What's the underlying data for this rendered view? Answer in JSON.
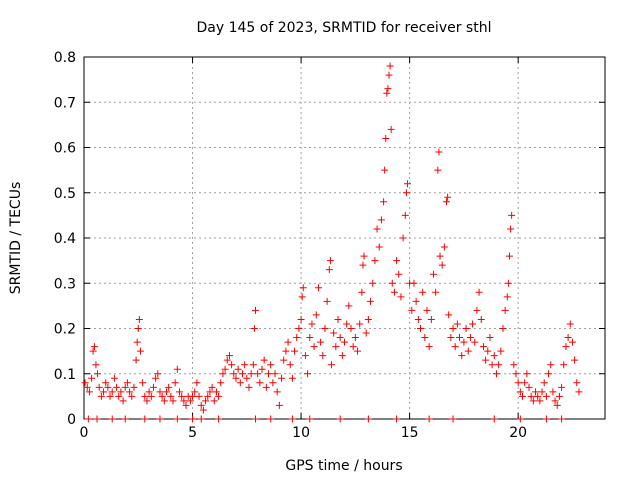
{
  "chart_data": {
    "type": "scatter",
    "title": "Day 145 of 2023, SRMTID for receiver sthl",
    "xlabel": "GPS time / hours",
    "ylabel": "SRMTID / TECUs",
    "xlim": [
      0,
      24
    ],
    "ylim": [
      0,
      0.8
    ],
    "xticks": [
      0,
      5,
      10,
      15,
      20
    ],
    "yticks": [
      0,
      0.1,
      0.2,
      0.3,
      0.4,
      0.5,
      0.6,
      0.7,
      0.8
    ],
    "grid": true,
    "marker": "+",
    "color": "#ff0000",
    "series": [
      {
        "name": "SRMTID",
        "points": [
          [
            0.05,
            0.08
          ],
          [
            0.15,
            0.07
          ],
          [
            0.25,
            0.06
          ],
          [
            0.35,
            0.09
          ],
          [
            0.42,
            0.15
          ],
          [
            0.48,
            0.16
          ],
          [
            0.55,
            0.12
          ],
          [
            0.62,
            0.1
          ],
          [
            0.7,
            0.07
          ],
          [
            0.8,
            0.05
          ],
          [
            0.9,
            0.06
          ],
          [
            1.0,
            0.08
          ],
          [
            1.1,
            0.07
          ],
          [
            1.2,
            0.05
          ],
          [
            1.3,
            0.06
          ],
          [
            1.4,
            0.09
          ],
          [
            1.5,
            0.07
          ],
          [
            1.6,
            0.05
          ],
          [
            1.7,
            0.06
          ],
          [
            1.8,
            0.04
          ],
          [
            1.9,
            0.07
          ],
          [
            2.0,
            0.08
          ],
          [
            2.1,
            0.06
          ],
          [
            2.2,
            0.05
          ],
          [
            2.3,
            0.07
          ],
          [
            2.4,
            0.13
          ],
          [
            2.45,
            0.17
          ],
          [
            2.5,
            0.2
          ],
          [
            2.55,
            0.22
          ],
          [
            2.6,
            0.15
          ],
          [
            2.7,
            0.08
          ],
          [
            2.8,
            0.05
          ],
          [
            2.9,
            0.04
          ],
          [
            3.0,
            0.06
          ],
          [
            3.1,
            0.05
          ],
          [
            3.2,
            0.07
          ],
          [
            3.3,
            0.09
          ],
          [
            3.4,
            0.1
          ],
          [
            3.5,
            0.06
          ],
          [
            3.6,
            0.05
          ],
          [
            3.7,
            0.04
          ],
          [
            3.8,
            0.06
          ],
          [
            3.9,
            0.07
          ],
          [
            4.0,
            0.05
          ],
          [
            4.1,
            0.04
          ],
          [
            4.2,
            0.08
          ],
          [
            4.3,
            0.11
          ],
          [
            4.4,
            0.06
          ],
          [
            4.5,
            0.05
          ],
          [
            4.6,
            0.04
          ],
          [
            4.7,
            0.03
          ],
          [
            4.8,
            0.05
          ],
          [
            4.9,
            0.04
          ],
          [
            5.0,
            0.05
          ],
          [
            5.1,
            0.06
          ],
          [
            5.2,
            0.08
          ],
          [
            5.3,
            0.05
          ],
          [
            5.4,
            0.03
          ],
          [
            5.5,
            0.02
          ],
          [
            5.6,
            0.04
          ],
          [
            5.7,
            0.05
          ],
          [
            5.8,
            0.06
          ],
          [
            5.9,
            0.07
          ],
          [
            6.0,
            0.04
          ],
          [
            6.1,
            0.06
          ],
          [
            6.2,
            0.05
          ],
          [
            6.3,
            0.08
          ],
          [
            6.4,
            0.1
          ],
          [
            6.5,
            0.11
          ],
          [
            6.6,
            0.13
          ],
          [
            6.7,
            0.14
          ],
          [
            6.8,
            0.12
          ],
          [
            6.9,
            0.1
          ],
          [
            7.0,
            0.09
          ],
          [
            7.1,
            0.11
          ],
          [
            7.2,
            0.08
          ],
          [
            7.3,
            0.1
          ],
          [
            7.4,
            0.12
          ],
          [
            7.5,
            0.09
          ],
          [
            7.6,
            0.07
          ],
          [
            7.7,
            0.1
          ],
          [
            7.8,
            0.12
          ],
          [
            7.85,
            0.2
          ],
          [
            7.9,
            0.24
          ],
          [
            8.0,
            0.1
          ],
          [
            8.1,
            0.08
          ],
          [
            8.2,
            0.11
          ],
          [
            8.3,
            0.13
          ],
          [
            8.4,
            0.07
          ],
          [
            8.5,
            0.1
          ],
          [
            8.6,
            0.12
          ],
          [
            8.7,
            0.08
          ],
          [
            8.8,
            0.1
          ],
          [
            8.9,
            0.06
          ],
          [
            9.0,
            0.03
          ],
          [
            9.1,
            0.09
          ],
          [
            9.2,
            0.13
          ],
          [
            9.3,
            0.15
          ],
          [
            9.4,
            0.17
          ],
          [
            9.5,
            0.12
          ],
          [
            9.6,
            0.09
          ],
          [
            9.7,
            0.15
          ],
          [
            9.8,
            0.18
          ],
          [
            9.9,
            0.2
          ],
          [
            10.0,
            0.22
          ],
          [
            10.05,
            0.27
          ],
          [
            10.1,
            0.29
          ],
          [
            10.2,
            0.14
          ],
          [
            10.3,
            0.1
          ],
          [
            10.4,
            0.18
          ],
          [
            10.5,
            0.21
          ],
          [
            10.6,
            0.16
          ],
          [
            10.7,
            0.23
          ],
          [
            10.8,
            0.29
          ],
          [
            10.9,
            0.17
          ],
          [
            11.0,
            0.14
          ],
          [
            11.1,
            0.2
          ],
          [
            11.2,
            0.26
          ],
          [
            11.3,
            0.33
          ],
          [
            11.35,
            0.35
          ],
          [
            11.4,
            0.12
          ],
          [
            11.5,
            0.19
          ],
          [
            11.6,
            0.16
          ],
          [
            11.7,
            0.22
          ],
          [
            11.8,
            0.18
          ],
          [
            11.9,
            0.14
          ],
          [
            12.0,
            0.17
          ],
          [
            12.1,
            0.21
          ],
          [
            12.2,
            0.25
          ],
          [
            12.3,
            0.2
          ],
          [
            12.4,
            0.16
          ],
          [
            12.5,
            0.18
          ],
          [
            12.6,
            0.15
          ],
          [
            12.7,
            0.21
          ],
          [
            12.8,
            0.28
          ],
          [
            12.85,
            0.34
          ],
          [
            12.9,
            0.36
          ],
          [
            13.0,
            0.19
          ],
          [
            13.1,
            0.22
          ],
          [
            13.2,
            0.26
          ],
          [
            13.3,
            0.3
          ],
          [
            13.4,
            0.35
          ],
          [
            13.5,
            0.42
          ],
          [
            13.6,
            0.38
          ],
          [
            13.7,
            0.44
          ],
          [
            13.8,
            0.48
          ],
          [
            13.85,
            0.55
          ],
          [
            13.9,
            0.62
          ],
          [
            13.95,
            0.72
          ],
          [
            14.0,
            0.73
          ],
          [
            14.05,
            0.76
          ],
          [
            14.1,
            0.78
          ],
          [
            14.15,
            0.64
          ],
          [
            14.2,
            0.3
          ],
          [
            14.3,
            0.28
          ],
          [
            14.4,
            0.35
          ],
          [
            14.5,
            0.32
          ],
          [
            14.6,
            0.27
          ],
          [
            14.7,
            0.4
          ],
          [
            14.8,
            0.45
          ],
          [
            14.85,
            0.5
          ],
          [
            14.9,
            0.52
          ],
          [
            15.0,
            0.3
          ],
          [
            15.1,
            0.24
          ],
          [
            15.2,
            0.3
          ],
          [
            15.3,
            0.26
          ],
          [
            15.4,
            0.22
          ],
          [
            15.5,
            0.2
          ],
          [
            15.6,
            0.28
          ],
          [
            15.7,
            0.18
          ],
          [
            15.8,
            0.24
          ],
          [
            15.9,
            0.16
          ],
          [
            16.0,
            0.22
          ],
          [
            16.1,
            0.32
          ],
          [
            16.2,
            0.28
          ],
          [
            16.3,
            0.55
          ],
          [
            16.35,
            0.59
          ],
          [
            16.4,
            0.36
          ],
          [
            16.5,
            0.34
          ],
          [
            16.6,
            0.38
          ],
          [
            16.7,
            0.48
          ],
          [
            16.75,
            0.49
          ],
          [
            16.8,
            0.23
          ],
          [
            16.9,
            0.18
          ],
          [
            17.0,
            0.2
          ],
          [
            17.1,
            0.16
          ],
          [
            17.2,
            0.21
          ],
          [
            17.3,
            0.18
          ],
          [
            17.4,
            0.14
          ],
          [
            17.5,
            0.17
          ],
          [
            17.6,
            0.2
          ],
          [
            17.7,
            0.15
          ],
          [
            17.8,
            0.18
          ],
          [
            17.9,
            0.21
          ],
          [
            18.0,
            0.17
          ],
          [
            18.1,
            0.24
          ],
          [
            18.2,
            0.28
          ],
          [
            18.3,
            0.22
          ],
          [
            18.4,
            0.16
          ],
          [
            18.5,
            0.13
          ],
          [
            18.6,
            0.15
          ],
          [
            18.7,
            0.18
          ],
          [
            18.8,
            0.12
          ],
          [
            18.9,
            0.14
          ],
          [
            19.0,
            0.1
          ],
          [
            19.1,
            0.12
          ],
          [
            19.2,
            0.15
          ],
          [
            19.3,
            0.2
          ],
          [
            19.4,
            0.24
          ],
          [
            19.5,
            0.27
          ],
          [
            19.55,
            0.3
          ],
          [
            19.6,
            0.36
          ],
          [
            19.65,
            0.42
          ],
          [
            19.7,
            0.45
          ],
          [
            19.8,
            0.12
          ],
          [
            19.9,
            0.1
          ],
          [
            20.0,
            0.08
          ],
          [
            20.1,
            0.06
          ],
          [
            20.2,
            0.05
          ],
          [
            20.3,
            0.08
          ],
          [
            20.4,
            0.1
          ],
          [
            20.5,
            0.07
          ],
          [
            20.6,
            0.05
          ],
          [
            20.7,
            0.04
          ],
          [
            20.8,
            0.06
          ],
          [
            20.9,
            0.05
          ],
          [
            21.0,
            0.04
          ],
          [
            21.1,
            0.06
          ],
          [
            21.2,
            0.08
          ],
          [
            21.3,
            0.05
          ],
          [
            21.4,
            0.1
          ],
          [
            21.5,
            0.12
          ],
          [
            21.6,
            0.06
          ],
          [
            21.7,
            0.04
          ],
          [
            21.8,
            0.03
          ],
          [
            21.9,
            0.05
          ],
          [
            22.0,
            0.07
          ],
          [
            22.1,
            0.12
          ],
          [
            22.2,
            0.16
          ],
          [
            22.3,
            0.18
          ],
          [
            22.4,
            0.21
          ],
          [
            22.5,
            0.17
          ],
          [
            22.6,
            0.13
          ],
          [
            22.7,
            0.08
          ],
          [
            22.8,
            0.06
          ],
          [
            0.2,
            0.0
          ],
          [
            0.6,
            0.0
          ],
          [
            1.3,
            0.0
          ],
          [
            1.9,
            0.0
          ],
          [
            2.8,
            0.0
          ],
          [
            3.5,
            0.0
          ],
          [
            4.3,
            0.0
          ],
          [
            5.0,
            0.0
          ],
          [
            5.4,
            0.0
          ],
          [
            6.2,
            0.0
          ],
          [
            7.9,
            0.0
          ],
          [
            8.6,
            0.0
          ],
          [
            9.6,
            0.0
          ],
          [
            10.4,
            0.0
          ],
          [
            11.8,
            0.0
          ],
          [
            13.1,
            0.0
          ],
          [
            14.4,
            0.0
          ],
          [
            15.9,
            0.0
          ],
          [
            17.0,
            0.0
          ],
          [
            18.9,
            0.0
          ],
          [
            20.1,
            0.0
          ],
          [
            21.3,
            0.0
          ],
          [
            22.0,
            0.0
          ]
        ]
      }
    ]
  }
}
